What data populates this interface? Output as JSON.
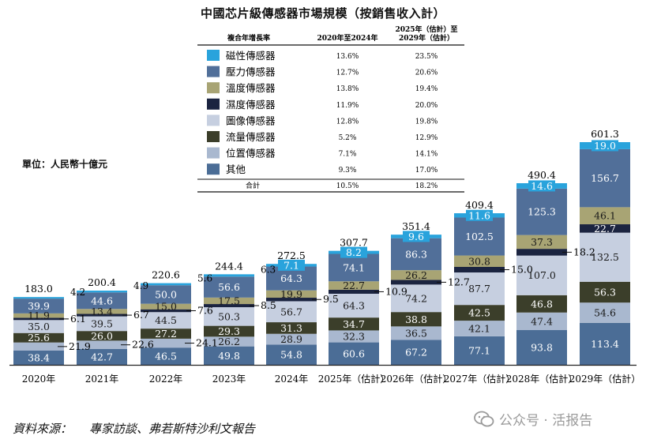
{
  "chart_data": {
    "type": "stacked-bar",
    "title": "中國芯片級傳感器市場規模（按銷售收入計）",
    "unit_label": "單位：人民幣十億元",
    "categories": [
      "2020年",
      "2021年",
      "2022年",
      "2023年",
      "2024年",
      "2025年（估計）",
      "2026年（估計）",
      "2027年（估計）",
      "2028年（估計）",
      "2029年（估計）"
    ],
    "totals": [
      "183.0",
      "200.4",
      "220.6",
      "244.4",
      "272.5",
      "307.7",
      "351.4",
      "409.4",
      "490.4",
      "601.3"
    ],
    "series": [
      {
        "name": "其他",
        "color": "#4b6d96",
        "values": [
          38.4,
          42.7,
          46.5,
          49.8,
          54.8,
          60.6,
          67.2,
          77.1,
          93.8,
          113.4
        ],
        "labels": [
          "38.4",
          "42.7",
          "46.5",
          "49.8",
          "54.8",
          "60.6",
          "67.2",
          "77.1",
          "93.8",
          "113.4"
        ]
      },
      {
        "name": "位置傳感器",
        "color": "#a9b8cf",
        "values": [
          21.9,
          22.6,
          24.1,
          26.2,
          28.9,
          32.3,
          36.5,
          42.1,
          47.4,
          54.6
        ],
        "labels": [
          "21.9",
          "22.6",
          "24.1",
          "26.2",
          "28.9",
          "32.3",
          "36.5",
          "42.1",
          "47.4",
          "54.6"
        ]
      },
      {
        "name": "流量傳感器",
        "color": "#3b3e2a",
        "values": [
          25.6,
          26.0,
          27.2,
          29.3,
          31.3,
          34.7,
          38.8,
          42.5,
          46.8,
          56.3
        ],
        "labels": [
          "25.6",
          "26.0",
          "27.2",
          "29.3",
          "31.3",
          "34.7",
          "38.8",
          "42.5",
          "46.8",
          "56.3"
        ]
      },
      {
        "name": "圖像傳感器",
        "color": "#c6cfe0",
        "values": [
          35.0,
          39.5,
          44.5,
          50.3,
          56.7,
          64.3,
          74.2,
          87.7,
          107.0,
          132.5
        ],
        "labels": [
          "35.0",
          "39.5",
          "44.5",
          "50.3",
          "56.7",
          "64.3",
          "74.2",
          "87.7",
          "107.0",
          "132.5"
        ]
      },
      {
        "name": "濕度傳感器",
        "color": "#1b2440",
        "values": [
          6.1,
          6.7,
          7.6,
          8.5,
          9.5,
          10.9,
          12.7,
          15.0,
          18.2,
          22.7
        ],
        "labels": [
          "6.1",
          "6.7",
          "7.6",
          "8.5",
          "9.5",
          "10.9",
          "12.7",
          "15.0",
          "18.2",
          "22.7"
        ]
      },
      {
        "name": "溫度傳感器",
        "color": "#a8a474",
        "values": [
          11.9,
          13.4,
          15.0,
          17.5,
          19.9,
          22.7,
          26.2,
          30.8,
          37.3,
          46.1
        ],
        "labels": [
          "11.9",
          "13.4",
          "15.0",
          "17.5",
          "19.9",
          "22.7",
          "26.2",
          "30.8",
          "37.3",
          "46.1"
        ]
      },
      {
        "name": "壓力傳感器",
        "color": "#516f99",
        "values": [
          39.9,
          44.6,
          50.0,
          56.6,
          64.3,
          74.1,
          86.3,
          102.5,
          125.3,
          156.7
        ],
        "labels": [
          "39.9",
          "44.6",
          "50.0",
          "56.6",
          "64.3",
          "74.1",
          "86.3",
          "102.5",
          "125.3",
          "156.7"
        ]
      },
      {
        "name": "磁性傳感器",
        "color": "#29a3dc",
        "values": [
          4.2,
          4.9,
          5.6,
          6.3,
          7.1,
          8.2,
          9.6,
          11.6,
          14.6,
          19.0
        ],
        "labels": [
          "4.2",
          "4.9",
          "5.6",
          "6.3",
          "7.1",
          "8.2",
          "9.6",
          "11.6",
          "14.6",
          "19.0"
        ]
      }
    ],
    "cagr_table": {
      "header_label": "複合年增長率",
      "col1": "2020年至2024年",
      "col2_line1": "2025年（估計）至",
      "col2_line2": "2029年（估計）",
      "rows": [
        {
          "name": "磁性傳感器",
          "c1": "13.6%",
          "c2": "23.5%"
        },
        {
          "name": "壓力傳感器",
          "c1": "12.7%",
          "c2": "20.6%"
        },
        {
          "name": "溫度傳感器",
          "c1": "13.8%",
          "c2": "19.4%"
        },
        {
          "name": "濕度傳感器",
          "c1": "11.9%",
          "c2": "20.0%"
        },
        {
          "name": "圖像傳感器",
          "c1": "12.8%",
          "c2": "19.8%"
        },
        {
          "name": "流量傳感器",
          "c1": "5.2%",
          "c2": "12.9%"
        },
        {
          "name": "位置傳感器",
          "c1": "7.1%",
          "c2": "14.1%"
        },
        {
          "name": "其他",
          "c1": "9.3%",
          "c2": "17.0%"
        }
      ],
      "total_label": "合計",
      "total_c1": "10.5%",
      "total_c2": "18.2%"
    }
  },
  "footer": {
    "source_label": "資料來源：",
    "source_text": "專家訪談、弗若斯特沙利文報告"
  },
  "watermark": {
    "text": "公众号 · 活报告"
  }
}
